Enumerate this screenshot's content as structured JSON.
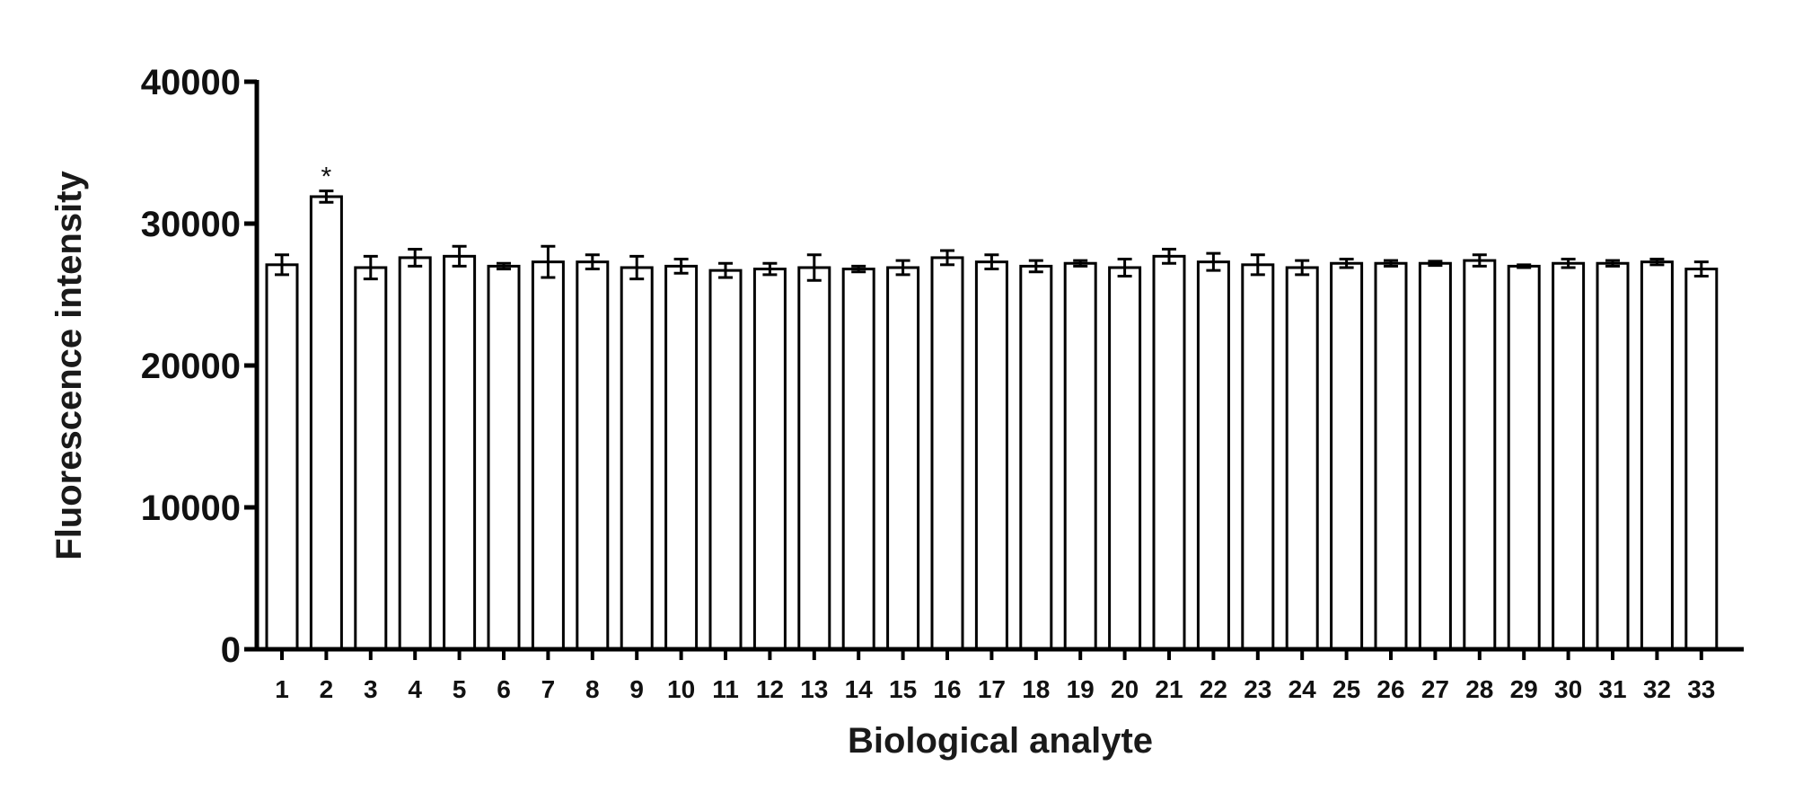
{
  "chart_data": {
    "type": "bar",
    "title": "",
    "xlabel": "Biological analyte",
    "ylabel": "Fluorescence intensity",
    "ylim": [
      0,
      40000
    ],
    "yticks": [
      "0",
      "10000",
      "20000",
      "30000",
      "40000"
    ],
    "categories": [
      "1",
      "2",
      "3",
      "4",
      "5",
      "6",
      "7",
      "8",
      "9",
      "10",
      "11",
      "12",
      "13",
      "14",
      "15",
      "16",
      "17",
      "18",
      "19",
      "20",
      "21",
      "22",
      "23",
      "24",
      "25",
      "26",
      "27",
      "28",
      "29",
      "30",
      "31",
      "32",
      "33"
    ],
    "values": [
      27100,
      31900,
      26900,
      27600,
      27700,
      27000,
      27300,
      27300,
      26900,
      27000,
      26700,
      26800,
      26900,
      26800,
      26900,
      27600,
      27300,
      27000,
      27200,
      26900,
      27700,
      27300,
      27100,
      26900,
      27200,
      27200,
      27200,
      27400,
      27000,
      27200,
      27200,
      27300,
      26800
    ],
    "errors": [
      700,
      400,
      800,
      600,
      700,
      200,
      1100,
      500,
      800,
      500,
      500,
      400,
      900,
      200,
      500,
      500,
      500,
      400,
      200,
      600,
      500,
      600,
      700,
      500,
      300,
      200,
      150,
      400,
      100,
      300,
      200,
      200,
      500
    ],
    "annotations": [
      {
        "category": "2",
        "text": "*"
      }
    ],
    "bar_fill": "#ffffff",
    "bar_stroke": "#000000",
    "grid": false,
    "legend": "none"
  }
}
